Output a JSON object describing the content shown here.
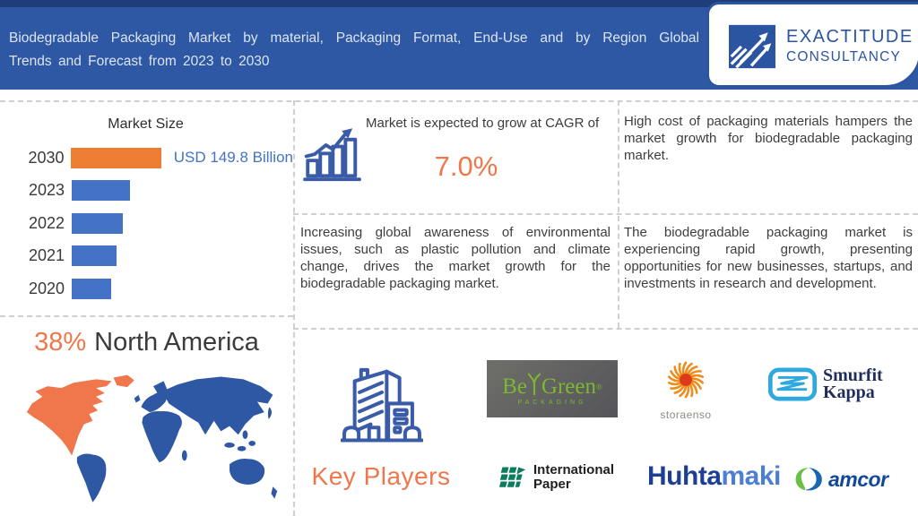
{
  "header": {
    "title_line1": "Biodegradable Packaging Market by material, Packaging Format, End-Use and by Region Global",
    "title_line2": "Trends and Forecast from 2023 to 2030",
    "logo": {
      "line1": "EXACTITUDE",
      "line2": "CONSULTANCY"
    }
  },
  "chart_data": {
    "type": "bar",
    "orientation": "horizontal",
    "title": "Market Size",
    "categories": [
      "2030",
      "2023",
      "2022",
      "2021",
      "2020"
    ],
    "values": [
      149.8,
      96,
      85,
      74,
      65
    ],
    "values_estimated": [
      false,
      true,
      true,
      true,
      true
    ],
    "unit": "USD Billion",
    "value_label": "USD 149.8 Billion",
    "highlight_index": 0,
    "bar_colors": [
      "#EC7D33",
      "#4473C5",
      "#4473C5",
      "#4473C5",
      "#4473C5"
    ],
    "xlim": [
      0,
      160
    ],
    "grid": false,
    "legend": "none"
  },
  "cagr": {
    "lead": "Market is expected to grow at CAGR of",
    "value": "7.0%"
  },
  "region_share": {
    "value": "38%",
    "label": "North America"
  },
  "insights": {
    "restraint": "High cost of packaging materials hampers the market growth for biodegradable packaging market.",
    "driver": "Increasing global awareness of environmental issues, such as plastic pollution and climate change, drives the market growth for the biodegradable packaging market.",
    "opportunity": "The biodegradable packaging market is experiencing rapid growth, presenting opportunities for new businesses, startups, and investments in research and development."
  },
  "key_players": {
    "heading": "Key Players",
    "logos": {
      "begreen": {
        "part1": "Be",
        "part2": "Green",
        "reg": "®",
        "sub": "PACKAGING"
      },
      "storaenso": {
        "text": "storaenso"
      },
      "smurfit": {
        "line1": "Smurfit",
        "line2": "Kappa"
      },
      "ip": {
        "line1": "International",
        "line2": "Paper"
      },
      "huhtamaki": {
        "part1": "Huhta",
        "part2": "maki"
      },
      "amcor": {
        "text": "amcor"
      }
    }
  },
  "colors": {
    "header_blue": "#2E57A4",
    "header_top_stripe": "#1E3D7B",
    "accent_orange": "#F0764B",
    "bar_blue": "#4473C5",
    "bar_orange": "#EC7D33",
    "map_blue": "#2E57A4",
    "map_orange": "#F0764B",
    "body_text": "#3E3E3E",
    "dashed_line": "#CFCFCF",
    "logo_blue": "#2B55A0"
  }
}
